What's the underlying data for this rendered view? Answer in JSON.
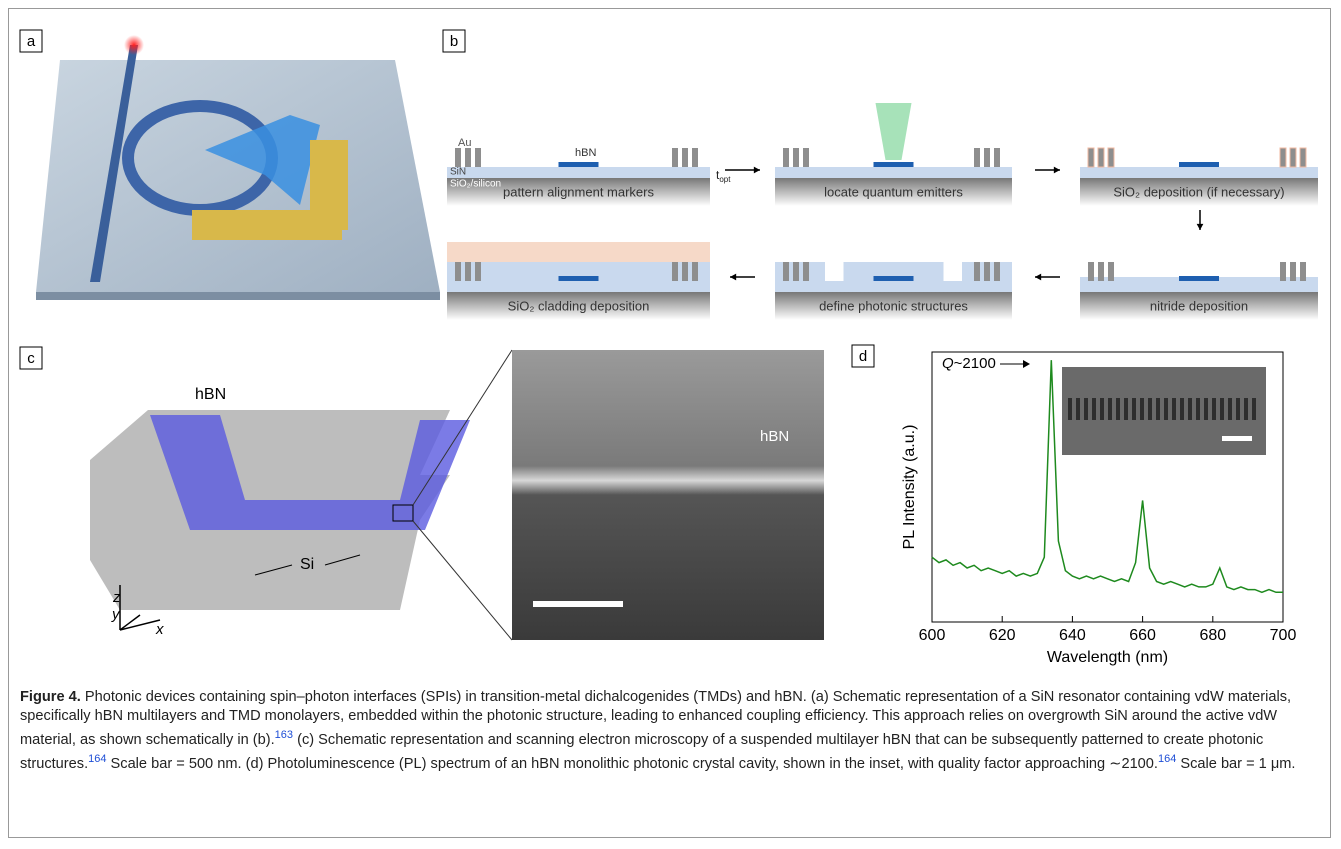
{
  "panels": {
    "a": {
      "label": "a"
    },
    "b": {
      "label": "b",
      "layers": {
        "au": "Au",
        "hbn": "hBN",
        "sin": "SiN",
        "substrate": "SiO₂/silicon",
        "t": "t",
        "t_sub": "opt"
      },
      "steps": [
        "pattern alignment markers",
        "locate quantum emitters",
        "SiO₂ deposition (if necessary)",
        "nitride deposition",
        "define photonic structures",
        "SiO₂ cladding deposition"
      ]
    },
    "c": {
      "label": "c",
      "hbn": "hBN",
      "si": "Si",
      "axis_z": "z",
      "axis_y": "y",
      "axis_x": "x",
      "sem_hbn": "hBN"
    },
    "d": {
      "label": "d"
    }
  },
  "chart_data": {
    "type": "line",
    "xlabel": "Wavelength (nm)",
    "ylabel": "PL Intensity (a.u.)",
    "annotation_q": "Q",
    "annotation_rest": "~2100",
    "color": "#1e8a1e",
    "x": [
      600,
      602,
      604,
      606,
      608,
      610,
      612,
      614,
      616,
      618,
      620,
      622,
      624,
      626,
      628,
      630,
      632,
      634,
      636,
      638,
      640,
      642,
      644,
      646,
      648,
      650,
      652,
      654,
      656,
      658,
      660,
      662,
      664,
      666,
      668,
      670,
      672,
      674,
      676,
      678,
      680,
      682,
      684,
      686,
      688,
      690,
      692,
      694,
      696,
      698,
      700
    ],
    "values": [
      0.24,
      0.22,
      0.23,
      0.21,
      0.22,
      0.2,
      0.21,
      0.19,
      0.2,
      0.19,
      0.18,
      0.19,
      0.17,
      0.18,
      0.17,
      0.18,
      0.24,
      0.97,
      0.3,
      0.19,
      0.17,
      0.16,
      0.17,
      0.16,
      0.17,
      0.16,
      0.15,
      0.16,
      0.15,
      0.22,
      0.45,
      0.2,
      0.15,
      0.14,
      0.15,
      0.14,
      0.13,
      0.14,
      0.13,
      0.13,
      0.14,
      0.2,
      0.13,
      0.12,
      0.13,
      0.12,
      0.12,
      0.11,
      0.12,
      0.11,
      0.11
    ],
    "xlim": [
      600,
      700
    ],
    "xticks": [
      600,
      620,
      640,
      660,
      680,
      700
    ],
    "ylim": [
      0,
      1
    ]
  },
  "caption": {
    "label": "Figure 4.",
    "parts": [
      "  Photonic devices containing spin–photon interfaces (SPIs) in transition-metal dichalcogenides (TMDs) and hBN. (a) Schematic representation of a SiN resonator containing vdW materials, specifically hBN multilayers and TMD monolayers, embedded within the photonic structure, leading to enhanced coupling efficiency. This approach relies on overgrowth SiN around the active vdW material, as shown schematically in (b).",
      "163",
      " (c) Schematic representation and scanning electron microscopy of a suspended multilayer hBN that can be subsequently patterned to create photonic structures.",
      "164",
      " Scale bar = 500 nm. (d) Photoluminescence (PL) spectrum of an hBN monolithic photonic crystal cavity, shown in the inset, with quality factor approaching ∼2100.",
      "164",
      " Scale bar = 1 μm."
    ]
  }
}
